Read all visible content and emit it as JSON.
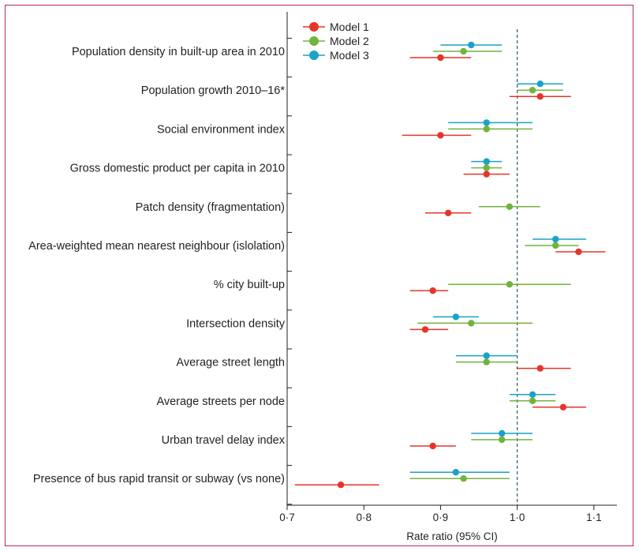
{
  "chart_data": {
    "type": "forest",
    "xlabel": "Rate ratio (95% CI)",
    "xlim": [
      0.7,
      1.13
    ],
    "xticks": [
      0.7,
      0.8,
      0.9,
      1.0,
      1.1
    ],
    "xtick_labels": [
      "0·7",
      "0·8",
      "0·9",
      "1·0",
      "1·1"
    ],
    "reference_line": 1.0,
    "legend_position": "top",
    "series": [
      {
        "name": "Model 1",
        "color": "#e5352b"
      },
      {
        "name": "Model 2",
        "color": "#71b33e"
      },
      {
        "name": "Model 3",
        "color": "#1aa2c7"
      }
    ],
    "rows": [
      {
        "label": "Population density in built-up area in 2010",
        "m1": [
          0.9,
          0.86,
          0.94
        ],
        "m2": [
          0.93,
          0.89,
          0.98
        ],
        "m3": [
          0.94,
          0.9,
          0.98
        ]
      },
      {
        "label": "Population growth 2010–16*",
        "m1": [
          1.03,
          0.99,
          1.07
        ],
        "m2": [
          1.02,
          1.0,
          1.06
        ],
        "m3": [
          1.03,
          1.0,
          1.06
        ]
      },
      {
        "label": "Social environment index",
        "m1": [
          0.9,
          0.85,
          0.94
        ],
        "m2": [
          0.96,
          0.91,
          1.02
        ],
        "m3": [
          0.96,
          0.91,
          1.02
        ]
      },
      {
        "label": "Gross domestic product per capita in 2010",
        "m1": [
          0.96,
          0.93,
          0.99
        ],
        "m2": [
          0.96,
          0.94,
          0.98
        ],
        "m3": [
          0.96,
          0.94,
          0.98
        ]
      },
      {
        "label": "Patch density (fragmentation)",
        "m1": [
          0.91,
          0.88,
          0.94
        ],
        "m2": [
          0.99,
          0.95,
          1.03
        ],
        "m3": null
      },
      {
        "label": "Area-weighted mean nearest neighbour (islolation)",
        "m1": [
          1.08,
          1.05,
          1.115
        ],
        "m2": [
          1.05,
          1.01,
          1.08
        ],
        "m3": [
          1.05,
          1.02,
          1.09
        ]
      },
      {
        "label": "% city built-up",
        "m1": [
          0.89,
          0.86,
          0.91
        ],
        "m2": [
          0.99,
          0.91,
          1.07
        ],
        "m3": null
      },
      {
        "label": "Intersection density",
        "m1": [
          0.88,
          0.86,
          0.91
        ],
        "m2": [
          0.94,
          0.87,
          1.02
        ],
        "m3": [
          0.92,
          0.89,
          0.95
        ]
      },
      {
        "label": "Average street length",
        "m1": [
          1.03,
          1.0,
          1.07
        ],
        "m2": [
          0.96,
          0.92,
          1.0
        ],
        "m3": [
          0.96,
          0.92,
          1.0
        ]
      },
      {
        "label": "Average streets per node",
        "m1": [
          1.06,
          1.02,
          1.09
        ],
        "m2": [
          1.02,
          0.99,
          1.05
        ],
        "m3": [
          1.02,
          0.99,
          1.05
        ]
      },
      {
        "label": "Urban travel delay index",
        "m1": [
          0.89,
          0.86,
          0.92
        ],
        "m2": [
          0.98,
          0.94,
          1.02
        ],
        "m3": [
          0.98,
          0.94,
          1.02
        ]
      },
      {
        "label": "Presence of bus rapid transit or subway (vs none)",
        "m1": [
          0.77,
          0.71,
          0.82
        ],
        "m2": [
          0.93,
          0.86,
          0.99
        ],
        "m3": [
          0.92,
          0.86,
          0.99
        ]
      }
    ]
  }
}
